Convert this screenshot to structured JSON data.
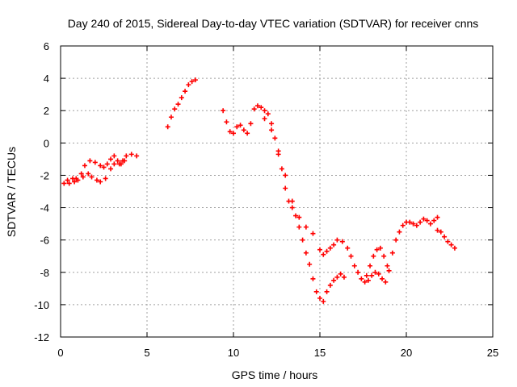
{
  "chart_data": {
    "type": "scatter",
    "title": "Day 240 of 2015, Sidereal Day-to-day VTEC variation (SDTVAR) for receiver cnns",
    "xlabel": "GPS time / hours",
    "ylabel": "SDTVAR / TECUs",
    "xlim": [
      0,
      25
    ],
    "ylim": [
      -12,
      6
    ],
    "xticks": [
      0,
      5,
      10,
      15,
      20,
      25
    ],
    "yticks": [
      -12,
      -10,
      -8,
      -6,
      -4,
      -2,
      0,
      2,
      4,
      6
    ],
    "x_tick_labels": [
      "0",
      "5",
      "10",
      "15",
      "20",
      "25"
    ],
    "y_tick_labels": [
      "-12",
      "-10",
      "-8",
      "-6",
      "-4",
      "-2",
      "0",
      "2",
      "4",
      "6"
    ],
    "grid": true,
    "marker": "plus",
    "color": "#ff0000",
    "series": [
      {
        "values": [
          [
            0.2,
            -2.5
          ],
          [
            0.5,
            -2.5
          ],
          [
            0.8,
            -2.4
          ],
          [
            1.0,
            -2.3
          ],
          [
            1.3,
            -2.1
          ],
          [
            1.6,
            -1.9
          ],
          [
            1.8,
            -2.1
          ],
          [
            2.1,
            -2.3
          ],
          [
            2.3,
            -2.4
          ],
          [
            2.6,
            -2.2
          ],
          [
            2.9,
            -1.6
          ],
          [
            3.1,
            -1.3
          ],
          [
            3.4,
            -1.3
          ],
          [
            3.6,
            -1.1
          ],
          [
            3.8,
            -0.8
          ],
          [
            4.1,
            -0.7
          ],
          [
            4.4,
            -0.8
          ],
          [
            0.4,
            -2.3
          ],
          [
            0.7,
            -2.2
          ],
          [
            0.9,
            -2.2
          ],
          [
            1.2,
            -1.9
          ],
          [
            1.4,
            -1.4
          ],
          [
            1.7,
            -1.1
          ],
          [
            2.0,
            -1.2
          ],
          [
            2.3,
            -1.4
          ],
          [
            2.5,
            -1.5
          ],
          [
            2.7,
            -1.3
          ],
          [
            2.9,
            -1.0
          ],
          [
            3.1,
            -0.8
          ],
          [
            3.3,
            -1.1
          ],
          [
            3.5,
            -1.3
          ],
          [
            3.7,
            -1.1
          ]
        ]
      },
      {
        "values": [
          [
            6.2,
            1.0
          ],
          [
            6.4,
            1.6
          ],
          [
            6.6,
            2.1
          ],
          [
            6.8,
            2.4
          ],
          [
            7.0,
            2.8
          ],
          [
            7.2,
            3.2
          ],
          [
            7.4,
            3.6
          ],
          [
            7.6,
            3.8
          ],
          [
            7.8,
            3.9
          ]
        ]
      },
      {
        "values": [
          [
            9.4,
            2.0
          ],
          [
            9.6,
            1.3
          ],
          [
            9.8,
            0.7
          ],
          [
            10.0,
            0.6
          ],
          [
            10.2,
            1.0
          ],
          [
            10.4,
            1.1
          ],
          [
            10.6,
            0.8
          ],
          [
            10.8,
            0.6
          ],
          [
            11.0,
            1.2
          ],
          [
            11.2,
            2.1
          ],
          [
            11.4,
            2.3
          ],
          [
            11.6,
            2.2
          ],
          [
            11.8,
            2.0
          ],
          [
            12.0,
            1.8
          ],
          [
            12.2,
            1.2
          ],
          [
            12.4,
            0.3
          ],
          [
            12.6,
            -0.7
          ],
          [
            12.8,
            -1.6
          ],
          [
            13.0,
            -2.8
          ],
          [
            13.2,
            -3.6
          ],
          [
            13.4,
            -4.0
          ],
          [
            13.6,
            -4.5
          ],
          [
            13.8,
            -5.2
          ],
          [
            14.0,
            -6.0
          ],
          [
            14.2,
            -6.8
          ],
          [
            14.4,
            -7.5
          ],
          [
            14.6,
            -8.4
          ],
          [
            14.8,
            -9.2
          ],
          [
            15.0,
            -9.6
          ],
          [
            15.2,
            -9.8
          ],
          [
            15.4,
            -9.2
          ],
          [
            15.6,
            -8.8
          ],
          [
            15.8,
            -8.5
          ],
          [
            16.0,
            -8.3
          ],
          [
            16.2,
            -8.1
          ],
          [
            16.4,
            -8.3
          ],
          [
            11.8,
            1.5
          ],
          [
            12.2,
            0.8
          ],
          [
            12.6,
            -0.5
          ],
          [
            13.0,
            -2.0
          ],
          [
            13.4,
            -3.6
          ],
          [
            13.8,
            -4.6
          ],
          [
            14.2,
            -5.2
          ],
          [
            14.6,
            -5.6
          ],
          [
            15.0,
            -6.6
          ],
          [
            15.2,
            -6.9
          ],
          [
            15.4,
            -6.7
          ],
          [
            15.6,
            -6.5
          ],
          [
            15.8,
            -6.3
          ],
          [
            16.0,
            -6.0
          ],
          [
            16.3,
            -6.1
          ],
          [
            16.6,
            -6.5
          ],
          [
            16.8,
            -7.0
          ],
          [
            17.0,
            -7.6
          ],
          [
            17.2,
            -8.0
          ],
          [
            17.4,
            -8.4
          ],
          [
            17.6,
            -8.6
          ],
          [
            17.8,
            -8.5
          ],
          [
            18.0,
            -8.2
          ],
          [
            18.2,
            -8.0
          ],
          [
            18.4,
            -8.1
          ],
          [
            18.6,
            -8.4
          ],
          [
            18.8,
            -8.6
          ],
          [
            19.0,
            -7.9
          ],
          [
            19.2,
            -6.8
          ],
          [
            19.4,
            -6.0
          ],
          [
            19.6,
            -5.5
          ],
          [
            19.8,
            -5.1
          ],
          [
            20.0,
            -4.9
          ],
          [
            20.2,
            -4.9
          ],
          [
            20.4,
            -5.0
          ],
          [
            20.6,
            -5.1
          ],
          [
            20.8,
            -4.9
          ],
          [
            21.0,
            -4.7
          ],
          [
            21.2,
            -4.8
          ],
          [
            21.4,
            -5.0
          ],
          [
            21.6,
            -4.8
          ],
          [
            21.8,
            -4.6
          ],
          [
            17.7,
            -8.2
          ],
          [
            17.9,
            -7.6
          ],
          [
            18.1,
            -7.0
          ],
          [
            18.3,
            -6.6
          ],
          [
            18.5,
            -6.5
          ],
          [
            18.7,
            -7.0
          ],
          [
            18.9,
            -7.6
          ]
        ]
      },
      {
        "values": [
          [
            21.8,
            -5.4
          ],
          [
            22.0,
            -5.5
          ],
          [
            22.2,
            -5.8
          ],
          [
            22.4,
            -6.1
          ],
          [
            22.6,
            -6.3
          ],
          [
            22.8,
            -6.5
          ]
        ]
      }
    ]
  }
}
